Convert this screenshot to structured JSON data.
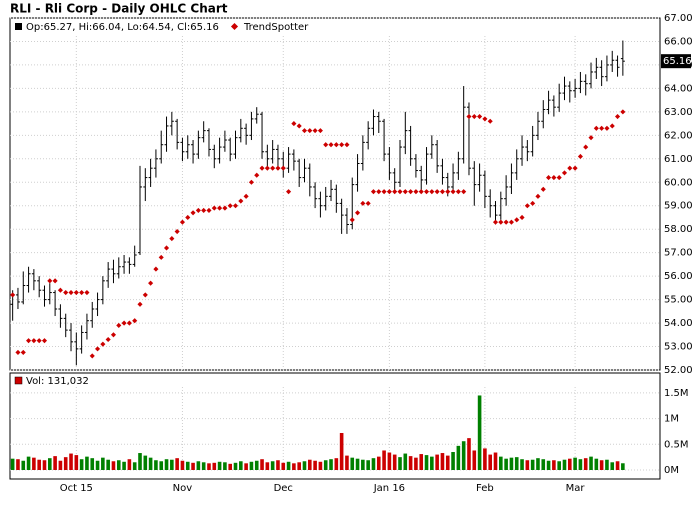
{
  "chart_data": {
    "type": "ohlc",
    "title": "RLI - Rli Corp - Daily OHLC Chart",
    "grid": true,
    "xlim": [
      -0.5,
      122
    ],
    "xticks": [
      {
        "value": 12,
        "label": "Oct 15"
      },
      {
        "value": 32,
        "label": "Nov"
      },
      {
        "value": 51,
        "label": "Dec"
      },
      {
        "value": 71,
        "label": "Jan 16"
      },
      {
        "value": 89,
        "label": "Feb"
      },
      {
        "value": 106,
        "label": "Mar"
      }
    ],
    "ylim": [
      52,
      67
    ],
    "yticks": [
      {
        "value": 52,
        "label": "52.00"
      },
      {
        "value": 53,
        "label": "53.00"
      },
      {
        "value": 54,
        "label": "54.00"
      },
      {
        "value": 55,
        "label": "55.00"
      },
      {
        "value": 56,
        "label": "56.00"
      },
      {
        "value": 57,
        "label": "57.00"
      },
      {
        "value": 58,
        "label": "58.00"
      },
      {
        "value": 59,
        "label": "59.00"
      },
      {
        "value": 60,
        "label": "60.00"
      },
      {
        "value": 61,
        "label": "61.00"
      },
      {
        "value": 62,
        "label": "62.00"
      },
      {
        "value": 63,
        "label": "63.00"
      },
      {
        "value": 64,
        "label": "64.00"
      },
      {
        "value": 65,
        "label": "65.00"
      },
      {
        "value": 66,
        "label": "66.00"
      },
      {
        "value": 67,
        "label": "67.00"
      }
    ],
    "ohlc": {
      "label": "Op:65.27, Hi:66.04, Lo:64.54, Cl:65.16",
      "color": "#000000",
      "tag_color": "#000000",
      "values": [
        [
          54.8,
          55.4,
          54.1,
          55.2
        ],
        [
          55.2,
          55.5,
          54.6,
          54.9
        ],
        [
          54.9,
          56.2,
          54.8,
          55.6
        ],
        [
          55.6,
          56.4,
          55.3,
          56.1
        ],
        [
          56.1,
          56.3,
          55.4,
          55.8
        ],
        [
          55.8,
          56.0,
          55.1,
          55.4
        ],
        [
          55.4,
          55.6,
          54.7,
          55.0
        ],
        [
          55.0,
          55.7,
          54.8,
          55.3
        ],
        [
          55.3,
          55.4,
          54.3,
          54.6
        ],
        [
          54.6,
          54.8,
          53.8,
          54.2
        ],
        [
          54.2,
          54.4,
          53.4,
          53.7
        ],
        [
          53.7,
          54.0,
          52.8,
          53.2
        ],
        [
          53.2,
          53.6,
          52.2,
          52.9
        ],
        [
          52.9,
          53.9,
          52.7,
          53.6
        ],
        [
          53.6,
          54.4,
          53.3,
          54.1
        ],
        [
          54.1,
          54.9,
          53.8,
          54.6
        ],
        [
          54.6,
          55.3,
          54.3,
          55.0
        ],
        [
          55.0,
          56.0,
          54.8,
          55.8
        ],
        [
          55.8,
          56.6,
          55.5,
          56.3
        ],
        [
          56.3,
          56.7,
          55.7,
          56.1
        ],
        [
          56.1,
          56.8,
          55.9,
          56.4
        ],
        [
          56.4,
          56.9,
          56.1,
          56.6
        ],
        [
          56.6,
          56.8,
          56.1,
          56.5
        ],
        [
          56.5,
          57.3,
          56.4,
          56.9
        ],
        [
          57.0,
          60.7,
          56.9,
          59.8
        ],
        [
          59.8,
          60.6,
          59.2,
          60.2
        ],
        [
          60.2,
          61.0,
          59.8,
          60.6
        ],
        [
          60.6,
          61.4,
          60.2,
          61.0
        ],
        [
          61.0,
          62.2,
          60.8,
          61.6
        ],
        [
          61.6,
          62.8,
          61.3,
          62.4
        ],
        [
          62.4,
          63.0,
          62.0,
          62.6
        ],
        [
          62.6,
          62.7,
          61.4,
          61.7
        ],
        [
          61.7,
          61.9,
          60.9,
          61.3
        ],
        [
          61.3,
          62.0,
          61.0,
          61.6
        ],
        [
          61.6,
          61.8,
          60.8,
          61.2
        ],
        [
          61.2,
          62.2,
          61.0,
          61.9
        ],
        [
          61.9,
          62.6,
          61.7,
          62.2
        ],
        [
          62.2,
          62.3,
          61.1,
          61.4
        ],
        [
          61.4,
          61.6,
          60.6,
          61.0
        ],
        [
          61.0,
          61.9,
          60.8,
          61.5
        ],
        [
          61.5,
          62.2,
          61.3,
          61.8
        ],
        [
          61.8,
          61.9,
          60.9,
          61.2
        ],
        [
          61.2,
          62.2,
          61.0,
          61.9
        ],
        [
          61.9,
          62.7,
          61.7,
          62.3
        ],
        [
          62.3,
          62.5,
          61.6,
          62.0
        ],
        [
          62.0,
          63.0,
          61.8,
          62.7
        ],
        [
          62.7,
          63.2,
          62.5,
          62.9
        ],
        [
          62.9,
          63.0,
          61.0,
          61.3
        ],
        [
          61.3,
          61.6,
          60.6,
          61.0
        ],
        [
          61.0,
          61.8,
          60.8,
          61.4
        ],
        [
          61.4,
          61.6,
          60.6,
          61.0
        ],
        [
          61.0,
          61.3,
          60.2,
          60.6
        ],
        [
          60.6,
          61.5,
          60.4,
          61.2
        ],
        [
          61.2,
          61.4,
          60.5,
          60.9
        ],
        [
          60.9,
          61.0,
          59.8,
          60.2
        ],
        [
          60.2,
          61.0,
          60.0,
          60.6
        ],
        [
          60.6,
          60.8,
          59.4,
          59.8
        ],
        [
          59.8,
          60.0,
          58.9,
          59.3
        ],
        [
          59.3,
          59.6,
          58.5,
          59.0
        ],
        [
          59.0,
          59.8,
          58.8,
          59.4
        ],
        [
          59.4,
          60.1,
          59.2,
          59.7
        ],
        [
          59.7,
          59.9,
          58.7,
          59.1
        ],
        [
          59.1,
          59.3,
          57.8,
          58.6
        ],
        [
          58.6,
          58.9,
          57.8,
          58.2
        ],
        [
          58.2,
          60.2,
          58.0,
          59.9
        ],
        [
          59.9,
          61.2,
          59.6,
          60.8
        ],
        [
          60.8,
          62.0,
          60.5,
          61.7
        ],
        [
          61.7,
          62.6,
          61.4,
          62.3
        ],
        [
          62.3,
          63.1,
          62.0,
          62.8
        ],
        [
          62.8,
          63.0,
          62.1,
          62.6
        ],
        [
          62.6,
          62.7,
          60.9,
          61.2
        ],
        [
          61.2,
          61.5,
          60.1,
          60.4
        ],
        [
          60.4,
          60.6,
          59.6,
          60.0
        ],
        [
          60.0,
          61.8,
          59.8,
          61.5
        ],
        [
          61.5,
          63.0,
          61.2,
          62.2
        ],
        [
          62.2,
          62.4,
          60.7,
          61.0
        ],
        [
          61.0,
          61.2,
          60.2,
          60.5
        ],
        [
          60.5,
          60.7,
          59.6,
          60.1
        ],
        [
          60.1,
          61.5,
          59.9,
          61.2
        ],
        [
          61.2,
          62.0,
          61.0,
          61.6
        ],
        [
          61.6,
          61.8,
          60.4,
          60.7
        ],
        [
          60.7,
          61.0,
          59.9,
          60.2
        ],
        [
          60.2,
          60.4,
          59.4,
          59.8
        ],
        [
          59.8,
          60.8,
          59.6,
          60.4
        ],
        [
          60.4,
          61.3,
          60.1,
          61.0
        ],
        [
          61.0,
          64.1,
          60.8,
          63.2
        ],
        [
          63.2,
          63.4,
          60.3,
          60.6
        ],
        [
          60.6,
          60.9,
          59.0,
          59.9
        ],
        [
          59.9,
          60.8,
          59.6,
          60.3
        ],
        [
          60.3,
          60.5,
          58.9,
          59.4
        ],
        [
          59.4,
          59.7,
          58.5,
          59.0
        ],
        [
          59.0,
          59.2,
          58.2,
          58.6
        ],
        [
          58.6,
          59.6,
          58.4,
          59.3
        ],
        [
          59.3,
          60.3,
          59.0,
          59.8
        ],
        [
          59.8,
          60.8,
          59.5,
          60.4
        ],
        [
          60.4,
          61.4,
          60.1,
          61.0
        ],
        [
          61.0,
          62.0,
          60.7,
          61.5
        ],
        [
          61.5,
          61.8,
          60.9,
          61.3
        ],
        [
          61.3,
          62.4,
          61.1,
          62.0
        ],
        [
          62.0,
          63.0,
          61.8,
          62.6
        ],
        [
          62.6,
          63.5,
          62.3,
          63.1
        ],
        [
          63.1,
          63.9,
          62.9,
          63.5
        ],
        [
          63.5,
          63.7,
          62.8,
          63.2
        ],
        [
          63.2,
          64.2,
          63.0,
          63.8
        ],
        [
          63.8,
          64.5,
          63.5,
          64.1
        ],
        [
          64.1,
          64.3,
          63.4,
          63.9
        ],
        [
          63.9,
          64.4,
          63.6,
          64.0
        ],
        [
          64.0,
          64.7,
          63.8,
          64.3
        ],
        [
          64.3,
          64.6,
          63.7,
          64.2
        ],
        [
          64.2,
          65.1,
          64.0,
          64.7
        ],
        [
          64.7,
          65.3,
          64.4,
          64.9
        ],
        [
          64.9,
          65.2,
          64.1,
          64.5
        ],
        [
          64.5,
          65.4,
          64.3,
          65.0
        ],
        [
          65.0,
          65.6,
          64.7,
          65.2
        ],
        [
          65.2,
          65.4,
          64.5,
          64.9
        ],
        [
          65.27,
          66.04,
          64.54,
          65.16
        ]
      ]
    },
    "trend": {
      "name": "TrendSpotter",
      "color": "#cc0000",
      "values": [
        55.2,
        52.75,
        52.75,
        53.25,
        53.25,
        53.25,
        53.25,
        55.8,
        55.8,
        55.4,
        55.3,
        55.3,
        55.3,
        55.3,
        55.3,
        52.6,
        52.9,
        53.1,
        53.3,
        53.5,
        53.9,
        54.0,
        54.0,
        54.1,
        54.8,
        55.2,
        55.7,
        56.3,
        56.8,
        57.2,
        57.6,
        57.9,
        58.3,
        58.5,
        58.7,
        58.8,
        58.8,
        58.8,
        58.9,
        58.9,
        58.9,
        59.0,
        59.0,
        59.2,
        59.4,
        60.0,
        60.3,
        60.6,
        60.6,
        60.6,
        60.6,
        60.6,
        59.6,
        62.5,
        62.4,
        62.2,
        62.2,
        62.2,
        62.2,
        61.6,
        61.6,
        61.6,
        61.6,
        61.6,
        58.4,
        58.7,
        59.1,
        59.1,
        59.6,
        59.6,
        59.6,
        59.6,
        59.6,
        59.6,
        59.6,
        59.6,
        59.6,
        59.6,
        59.6,
        59.6,
        59.6,
        59.6,
        59.6,
        59.6,
        59.6,
        59.6,
        62.8,
        62.8,
        62.8,
        62.7,
        62.6,
        58.3,
        58.3,
        58.3,
        58.3,
        58.4,
        58.5,
        59.0,
        59.1,
        59.4,
        59.7,
        60.2,
        60.2,
        60.2,
        60.4,
        60.6,
        60.6,
        61.1,
        61.5,
        61.9,
        62.3,
        62.3,
        62.3,
        62.4,
        62.8,
        63.0
      ]
    },
    "volume": {
      "label": "Vol: 131,032",
      "color": "#cc0000",
      "up_color": "#008000",
      "down_color": "#cc0000",
      "ylim": [
        0,
        1790000
      ],
      "yticks": [
        {
          "value": 0,
          "label": "0M"
        },
        {
          "value": 500000,
          "label": "0.5M"
        },
        {
          "value": 1000000,
          "label": "1M"
        },
        {
          "value": 1500000,
          "label": "1.5M"
        }
      ],
      "values": [
        220000,
        210000,
        180000,
        260000,
        240000,
        200000,
        190000,
        230000,
        270000,
        180000,
        250000,
        320000,
        290000,
        210000,
        260000,
        230000,
        180000,
        240000,
        200000,
        170000,
        190000,
        160000,
        210000,
        150000,
        330000,
        280000,
        240000,
        190000,
        170000,
        210000,
        200000,
        230000,
        180000,
        160000,
        140000,
        170000,
        150000,
        130000,
        140000,
        160000,
        150000,
        120000,
        140000,
        170000,
        130000,
        160000,
        180000,
        210000,
        150000,
        170000,
        190000,
        140000,
        160000,
        130000,
        150000,
        170000,
        200000,
        180000,
        160000,
        190000,
        210000,
        230000,
        720000,
        280000,
        240000,
        220000,
        200000,
        190000,
        230000,
        260000,
        380000,
        340000,
        300000,
        250000,
        320000,
        270000,
        240000,
        310000,
        290000,
        260000,
        300000,
        330000,
        280000,
        350000,
        470000,
        560000,
        620000,
        380000,
        1450000,
        420000,
        300000,
        340000,
        260000,
        220000,
        240000,
        250000,
        210000,
        190000,
        200000,
        230000,
        210000,
        180000,
        190000,
        170000,
        200000,
        220000,
        240000,
        210000,
        230000,
        260000,
        220000,
        190000,
        200000,
        150000,
        170000,
        131032
      ]
    }
  }
}
